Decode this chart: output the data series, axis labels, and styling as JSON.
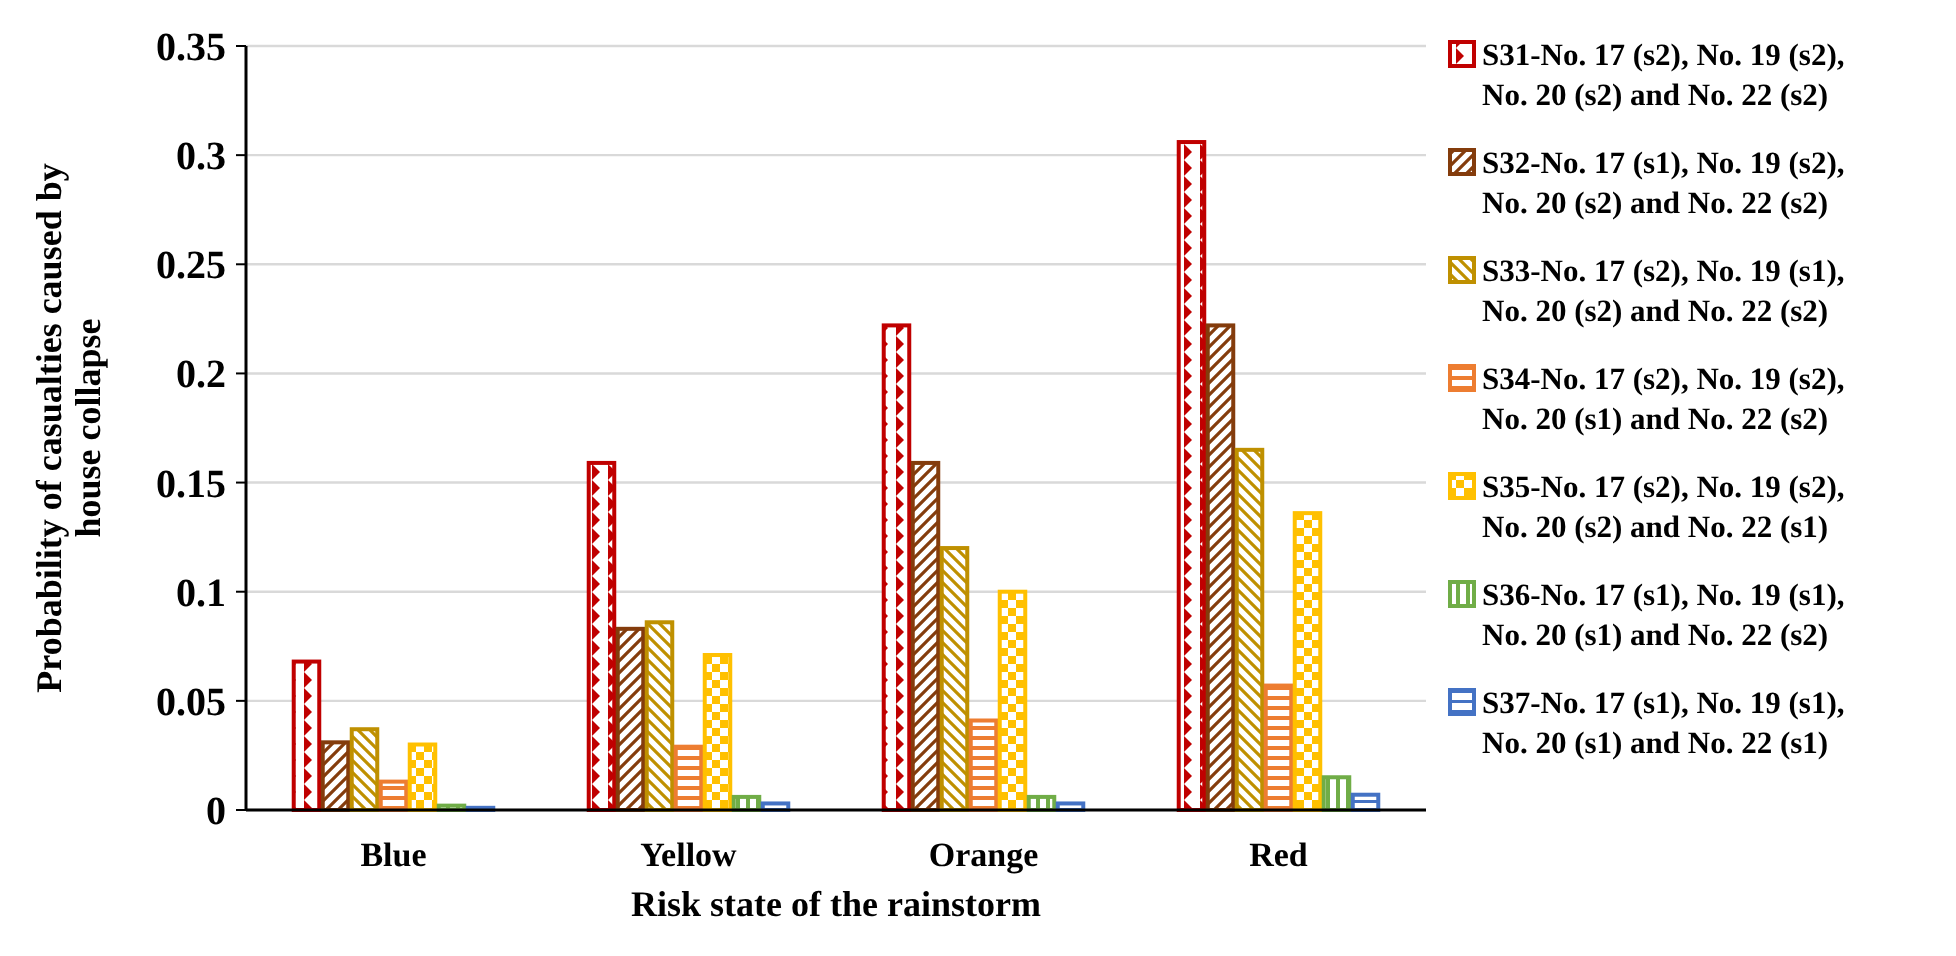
{
  "chart_data": {
    "type": "bar",
    "xlabel": "Risk state of the rainstorm",
    "ylabel": "Probability of casualties caused by house collapse",
    "categories": [
      "Blue",
      "Yellow",
      "Orange",
      "Red"
    ],
    "series": [
      {
        "name": "S31-No. 17 (s2), No. 19 (s2), No. 20 (s2) and No. 22 (s2)",
        "color": "#c00000",
        "values": [
          0.068,
          0.159,
          0.222,
          0.306
        ]
      },
      {
        "name": "S32-No. 17 (s1), No. 19 (s2), No. 20 (s2) and No. 22 (s2)",
        "color": "#843c0c",
        "values": [
          0.031,
          0.083,
          0.159,
          0.222
        ]
      },
      {
        "name": "S33-No. 17 (s2), No. 19 (s1), No. 20 (s2) and No. 22 (s2)",
        "color": "#bf9000",
        "values": [
          0.037,
          0.086,
          0.12,
          0.165
        ]
      },
      {
        "name": "S34-No. 17 (s2), No. 19 (s2), No. 20 (s1) and No. 22 (s2)",
        "color": "#ed7d31",
        "values": [
          0.013,
          0.029,
          0.041,
          0.057
        ]
      },
      {
        "name": "S35-No. 17 (s2), No. 19 (s2), No. 20 (s2) and No. 22 (s1)",
        "color": "#ffc000",
        "values": [
          0.03,
          0.071,
          0.1,
          0.136
        ]
      },
      {
        "name": "S36-No. 17 (s1), No. 19 (s1), No. 20 (s1) and No. 22 (s2)",
        "color": "#70ad47",
        "values": [
          0.002,
          0.006,
          0.006,
          0.015
        ]
      },
      {
        "name": "S37-No. 17 (s1), No. 19 (s1), No. 20 (s1) and No. 22 (s1)",
        "color": "#4472c4",
        "values": [
          0.001,
          0.003,
          0.003,
          0.007
        ]
      }
    ],
    "ylim": [
      0,
      0.35
    ],
    "yticks": [
      0,
      0.05,
      0.1,
      0.15,
      0.2,
      0.25,
      0.3,
      0.35
    ],
    "grid": "y",
    "legend": "right"
  }
}
